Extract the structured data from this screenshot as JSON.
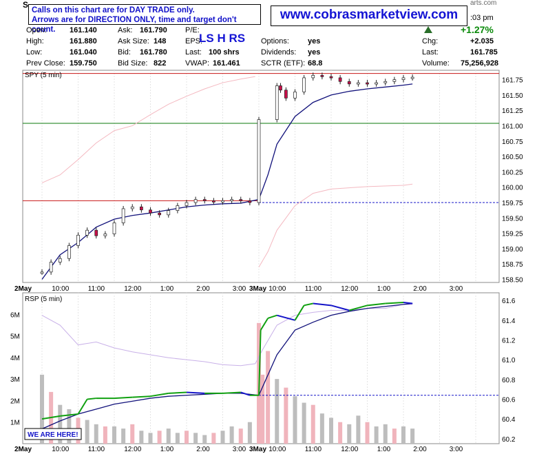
{
  "header": {
    "symbol_partial": "S",
    "notice_line1": "Calls on this chart are for DAY TRADE only.",
    "notice_line2": "Arrows are for DIRECTION ONLY, time and target don't count.",
    "website": "www.cobrasmarketview.com",
    "time_partial": ":03 pm",
    "source_partial": "arts.com",
    "pct_change": "+1.27%",
    "trend_icon": "up-triangle-icon",
    "ls_text": "LS H RS",
    "fields": {
      "open": {
        "label": "Open:",
        "value": "161.140"
      },
      "high": {
        "label": "High:",
        "value": "161.880"
      },
      "low": {
        "label": "Low:",
        "value": "161.040"
      },
      "prev_close": {
        "label": "Prev Close:",
        "value": "159.750"
      },
      "ask": {
        "label": "Ask:",
        "value": "161.790"
      },
      "ask_size": {
        "label": "Ask Size:",
        "value": "148"
      },
      "bid": {
        "label": "Bid:",
        "value": "161.780"
      },
      "bid_size": {
        "label": "Bid Size:",
        "value": "822"
      },
      "pe": {
        "label": "P/E:",
        "value": ""
      },
      "eps": {
        "label": "EPS:",
        "value": ""
      },
      "last_size": {
        "label": "Last:",
        "value": "100 shrs"
      },
      "vwap": {
        "label": "VWAP:",
        "value": "161.461"
      },
      "options": {
        "label": "Options:",
        "value": "yes"
      },
      "dividends": {
        "label": "Dividends:",
        "value": "yes"
      },
      "sctr": {
        "label": "SCTR (ETF):",
        "value": "68.8"
      },
      "chg": {
        "label": "Chg:",
        "value": "+2.035"
      },
      "last": {
        "label": "Last:",
        "value": "161.785"
      },
      "volume": {
        "label": "Volume:",
        "value": "75,256,928"
      }
    }
  },
  "chart_data": [
    {
      "type": "line",
      "title": "SPY (5 min)",
      "x_ticks": [
        "2May",
        "10:00",
        "11:00",
        "12:00",
        "1:00",
        "2:00",
        "3:00",
        "3May",
        "10:00",
        "11:00",
        "12:00",
        "1:00",
        "2:00",
        "3:00"
      ],
      "y_ticks": [
        "161.75",
        "161.50",
        "161.25",
        "161.00",
        "160.75",
        "160.50",
        "160.25",
        "160.00",
        "159.75",
        "159.50",
        "159.25",
        "159.00",
        "158.75",
        "158.50"
      ],
      "ylim": [
        158.5,
        161.88
      ],
      "hlines": {
        "red": 161.85,
        "green": 161.04,
        "blue_dashed": 159.75
      },
      "series": [
        {
          "name": "",
          "style": "candles",
          "x": [
            0,
            0.25,
            0.5,
            0.75,
            1.0,
            1.25,
            1.5,
            1.75,
            2.0,
            2.25,
            2.5,
            2.75,
            3.0,
            3.25,
            3.5,
            3.75,
            4.0,
            4.25,
            4.5,
            4.75,
            5.0,
            5.25,
            5.5,
            5.75,
            6.0,
            6.5,
            6.6,
            6.75,
            7.0,
            7.25,
            7.5,
            7.75,
            8.0,
            8.25,
            8.5,
            8.75,
            9.0,
            9.25,
            9.5,
            9.75,
            10.0,
            10.25
          ],
          "y": [
            158.62,
            158.78,
            158.84,
            159.05,
            159.22,
            159.3,
            159.21,
            159.24,
            159.42,
            159.65,
            159.68,
            159.63,
            159.58,
            159.55,
            159.62,
            159.7,
            159.75,
            159.8,
            159.78,
            159.76,
            159.78,
            159.8,
            159.78,
            159.75,
            161.1,
            161.65,
            161.58,
            161.45,
            161.55,
            161.78,
            161.82,
            161.8,
            161.78,
            161.72,
            161.68,
            161.7,
            161.68,
            161.7,
            161.72,
            161.75,
            161.78,
            161.79
          ]
        },
        {
          "name": "",
          "style": "ma_fast",
          "x": [
            0,
            0.5,
            1.0,
            1.5,
            2.0,
            2.5,
            3.0,
            3.5,
            4.0,
            4.5,
            5.0,
            5.5,
            6.0,
            6.25,
            6.5,
            7.0,
            7.5,
            8.0,
            8.5,
            9.0,
            9.5,
            10.0,
            10.25
          ],
          "y": [
            158.5,
            158.9,
            159.1,
            159.35,
            159.48,
            159.54,
            159.58,
            159.63,
            159.68,
            159.71,
            159.73,
            159.74,
            159.8,
            160.2,
            160.7,
            161.15,
            161.38,
            161.5,
            161.56,
            161.6,
            161.63,
            161.66,
            161.68
          ]
        },
        {
          "name": "",
          "style": "ma_slow_before",
          "x": [
            0,
            0.5,
            1.0,
            1.5,
            2.0,
            2.5,
            3.0,
            3.5,
            4.0,
            4.5,
            5.0,
            5.5,
            5.9
          ],
          "y": [
            160.07,
            160.2,
            160.45,
            160.72,
            160.92,
            161.0,
            161.18,
            161.35,
            161.48,
            161.6,
            161.7,
            161.76,
            161.8
          ]
        },
        {
          "name": "",
          "style": "ma_slow_after",
          "x": [
            6.0,
            6.25,
            6.5,
            7.0,
            7.5,
            8.0,
            9.0,
            10.0,
            10.25
          ],
          "y": [
            158.7,
            158.95,
            159.3,
            159.7,
            159.9,
            159.97,
            160.01,
            160.03,
            160.05
          ]
        }
      ]
    },
    {
      "type": "line",
      "title": "RSP (5 min)",
      "x_ticks": [
        "2May",
        "10:00",
        "11:00",
        "12:00",
        "1:00",
        "2:00",
        "3:00",
        "3May",
        "10:00",
        "11:00",
        "12:00",
        "1:00",
        "2:00",
        "3:00"
      ],
      "y_ticks": [
        "61.6",
        "61.4",
        "61.2",
        "61.0",
        "60.8",
        "60.6",
        "60.4",
        "60.2"
      ],
      "volume_ticks": [
        "6M",
        "5M",
        "4M",
        "3M",
        "2M",
        "1M"
      ],
      "ylim": [
        60.2,
        61.6
      ],
      "hlines": {
        "blue_dashed": 60.64
      },
      "annotation": "WE ARE HERE!",
      "series": [
        {
          "name": "",
          "style": "price",
          "x": [
            0,
            0.5,
            1.0,
            1.25,
            1.5,
            2.0,
            2.5,
            3.0,
            3.5,
            4.0,
            4.5,
            5.0,
            5.5,
            5.75,
            6.0,
            6.05,
            6.25,
            6.5,
            7.0,
            7.25,
            7.5,
            8.0,
            8.5,
            9.0,
            9.5,
            10.0,
            10.25
          ],
          "y": [
            60.4,
            60.43,
            60.45,
            60.6,
            60.61,
            60.61,
            60.62,
            60.63,
            60.66,
            60.67,
            60.66,
            60.66,
            60.67,
            60.64,
            60.64,
            61.3,
            61.42,
            61.45,
            61.4,
            61.55,
            61.57,
            61.55,
            61.5,
            61.55,
            61.57,
            61.58,
            61.57
          ]
        },
        {
          "name": "",
          "style": "ma_fast",
          "x": [
            0,
            0.5,
            1.0,
            1.5,
            2.0,
            2.5,
            3.0,
            3.5,
            4.0,
            4.5,
            5.0,
            5.5,
            6.0,
            6.5,
            7.0,
            7.5,
            8.0,
            8.5,
            9.0,
            9.5,
            10.0,
            10.25
          ],
          "y": [
            60.3,
            60.38,
            60.45,
            60.5,
            60.55,
            60.58,
            60.61,
            60.63,
            60.64,
            60.65,
            60.66,
            60.66,
            60.64,
            61.05,
            61.3,
            61.38,
            61.45,
            61.49,
            61.52,
            61.54,
            61.56,
            61.57
          ]
        },
        {
          "name": "",
          "style": "ma_slow",
          "x": [
            0,
            0.5,
            1.0,
            1.5,
            2.0,
            2.5,
            3.0,
            3.5,
            4.0,
            4.5,
            5.0,
            5.5,
            5.9,
            6.1,
            6.5,
            7.0,
            7.5,
            8.0,
            8.5,
            9.0,
            9.5,
            10.0,
            10.25
          ],
          "y": [
            61.45,
            61.35,
            61.15,
            61.18,
            61.12,
            61.08,
            61.05,
            61.02,
            61.0,
            60.98,
            60.95,
            60.94,
            60.96,
            61.1,
            61.35,
            61.45,
            61.48,
            61.5,
            61.5,
            61.52,
            61.52,
            61.56,
            61.56
          ]
        },
        {
          "name": "",
          "style": "volume",
          "x": [
            0,
            0.25,
            0.5,
            0.75,
            1.0,
            1.25,
            1.5,
            1.75,
            2.0,
            2.25,
            2.5,
            2.75,
            3.0,
            3.25,
            3.5,
            3.75,
            4.0,
            4.25,
            4.5,
            4.75,
            5.0,
            5.25,
            5.5,
            5.75,
            6.0,
            6.1,
            6.25,
            6.5,
            6.75,
            7.0,
            7.25,
            7.5,
            7.75,
            8.0,
            8.25,
            8.5,
            8.75,
            9.0,
            9.25,
            9.5,
            9.75,
            10.0,
            10.25
          ],
          "y": [
            3.2,
            2.4,
            1.8,
            1.6,
            1.2,
            1.1,
            0.9,
            0.8,
            0.8,
            0.7,
            0.9,
            0.6,
            0.5,
            0.6,
            0.7,
            0.5,
            0.6,
            0.5,
            0.4,
            0.5,
            0.6,
            0.8,
            0.7,
            1.0,
            5.6,
            3.2,
            4.3,
            3.0,
            2.6,
            2.2,
            1.9,
            1.8,
            1.4,
            1.2,
            1.0,
            0.9,
            1.3,
            1.0,
            0.8,
            0.9,
            0.7,
            0.8,
            0.7
          ]
        }
      ]
    }
  ]
}
